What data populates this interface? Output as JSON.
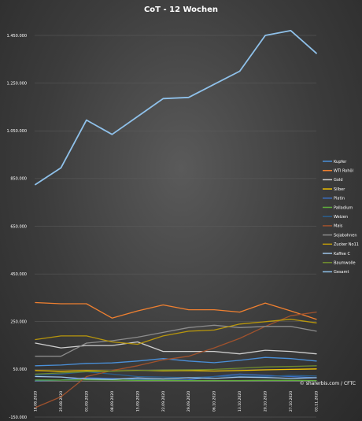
{
  "chart_data": {
    "type": "line",
    "title": "CoT - 12 Wochen",
    "xlabel": "",
    "ylabel": "",
    "ylim": [
      -150000,
      1550000
    ],
    "y_ticks": [
      -150000,
      50000,
      250000,
      450000,
      650000,
      850000,
      1050000,
      1250000,
      1450000
    ],
    "y_tick_labels": [
      "-150.000",
      "50.000",
      "250.000",
      "450.000",
      "650.000",
      "850.000",
      "1.050.000",
      "1.250.000",
      "1.450.000"
    ],
    "categories": [
      "18.08.2020",
      "25.08.2020",
      "01.09.2020",
      "08.09.2020",
      "15.09.2020",
      "22.09.2020",
      "29.09.2020",
      "06.10.2020",
      "13.10.2020",
      "20.10.2020",
      "27.10.2020",
      "03.11.2020"
    ],
    "grid": true,
    "legend_position": "right",
    "source": "© sharerbis.com / CFTC",
    "series": [
      {
        "name": "Kupfer",
        "color": "#4a90d9",
        "values": [
          65000,
          68000,
          75000,
          77000,
          85000,
          95000,
          85000,
          78000,
          88000,
          100000,
          95000,
          85000
        ]
      },
      {
        "name": "WTI Rohöl",
        "color": "#f08030",
        "values": [
          330000,
          325000,
          325000,
          265000,
          295000,
          320000,
          300000,
          300000,
          290000,
          328000,
          295000,
          260000
        ]
      },
      {
        "name": "Gold",
        "color": "#cfcfcf",
        "values": [
          160000,
          140000,
          150000,
          150000,
          165000,
          125000,
          125000,
          125000,
          115000,
          130000,
          125000,
          115000
        ]
      },
      {
        "name": "Silber",
        "color": "#f2c200",
        "values": [
          45000,
          42000,
          45000,
          43000,
          46000,
          44000,
          45000,
          43000,
          45000,
          48000,
          50000,
          52000
        ]
      },
      {
        "name": "Platin",
        "color": "#3a6fc4",
        "values": [
          2000,
          5000,
          15000,
          12000,
          8000,
          5000,
          6000,
          20000,
          30000,
          25000,
          20000,
          15000
        ]
      },
      {
        "name": "Palladium",
        "color": "#5fae3c",
        "values": [
          5000,
          5000,
          6000,
          5000,
          4000,
          4000,
          3000,
          3000,
          3000,
          4000,
          4000,
          3000
        ]
      },
      {
        "name": "Weizen",
        "color": "#2a5f8f",
        "values": [
          25000,
          30000,
          40000,
          30000,
          20000,
          18000,
          15000,
          20000,
          22000,
          20000,
          25000,
          22000
        ]
      },
      {
        "name": "Mais",
        "color": "#a0522d",
        "values": [
          -110000,
          -65000,
          20000,
          45000,
          65000,
          90000,
          105000,
          140000,
          180000,
          230000,
          275000,
          290000
        ]
      },
      {
        "name": "Sojabohnen",
        "color": "#8c8c8c",
        "values": [
          105000,
          105000,
          160000,
          170000,
          185000,
          205000,
          225000,
          235000,
          225000,
          230000,
          230000,
          210000
        ]
      },
      {
        "name": "Zucker No11",
        "color": "#b8960c",
        "values": [
          175000,
          190000,
          190000,
          165000,
          155000,
          190000,
          210000,
          215000,
          240000,
          250000,
          260000,
          245000
        ]
      },
      {
        "name": "Kaffee C",
        "color": "#9ec5ea",
        "values": [
          20000,
          18000,
          10000,
          8000,
          14000,
          10000,
          15000,
          12000,
          18000,
          16000,
          12000,
          15000
        ]
      },
      {
        "name": "Baumwolle",
        "color": "#6e8a2e",
        "values": [
          30000,
          35000,
          40000,
          42000,
          45000,
          47000,
          48000,
          50000,
          55000,
          60000,
          62000,
          65000
        ]
      },
      {
        "name": "Gesamt",
        "color": "#8fc1ea",
        "values": [
          825000,
          895000,
          1095000,
          1035000,
          1110000,
          1185000,
          1190000,
          1245000,
          1300000,
          1450000,
          1470000,
          1375000
        ]
      }
    ]
  }
}
